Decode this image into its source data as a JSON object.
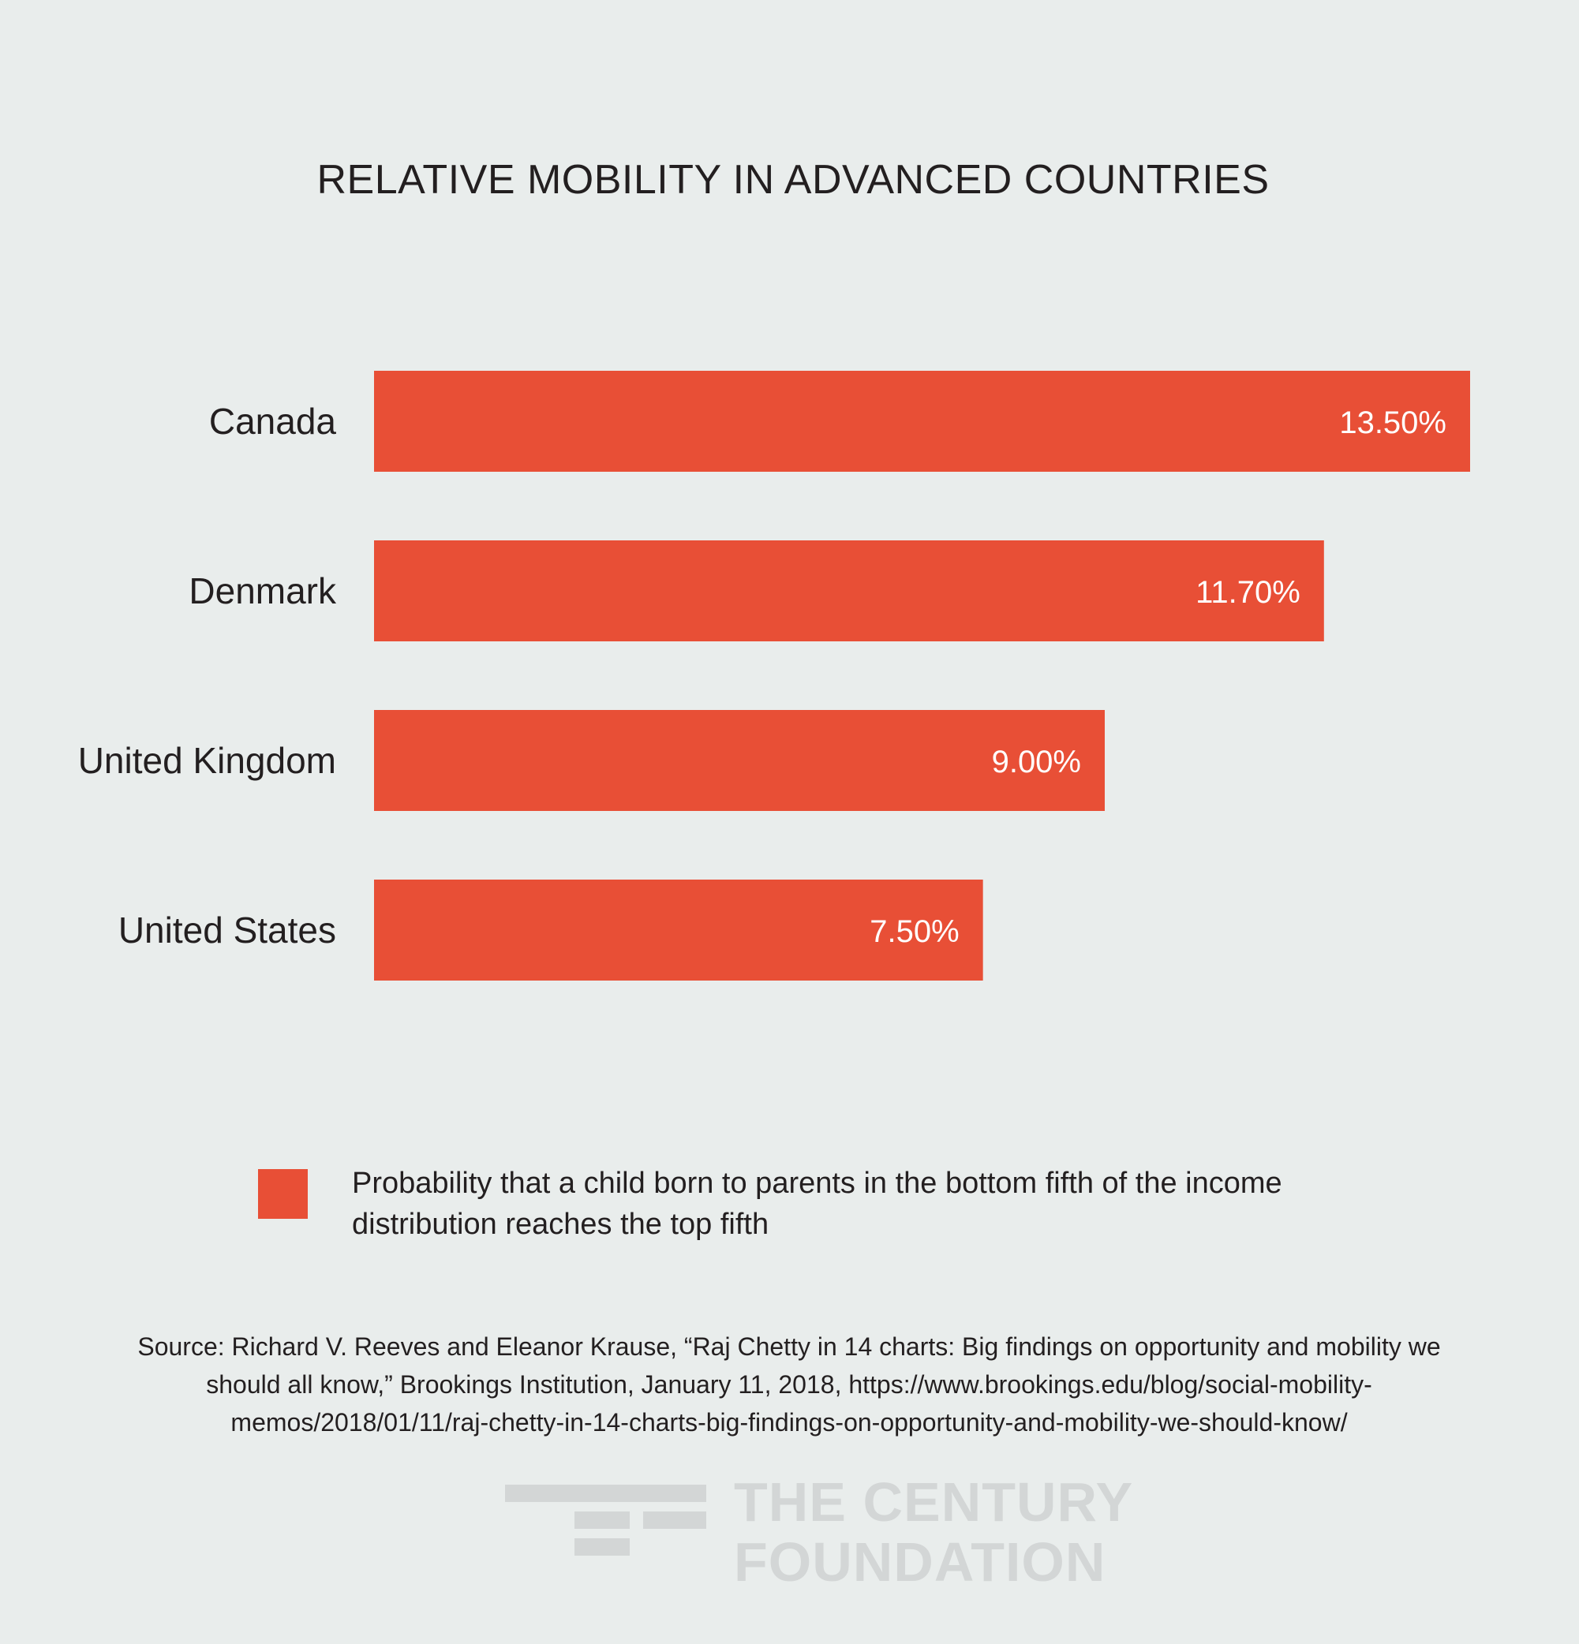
{
  "chart_data": {
    "type": "bar",
    "orientation": "horizontal",
    "title": "RELATIVE MOBILITY IN ADVANCED COUNTRIES",
    "categories": [
      "Canada",
      "Denmark",
      "United Kingdom",
      "United States"
    ],
    "series": [
      {
        "name": "Probability that a child born to parents in the bottom fifth of the income distribution reaches the top fifth",
        "values": [
          13.5,
          11.7,
          9.0,
          7.5
        ],
        "data_labels": [
          "13.50%",
          "11.70%",
          "9.00%",
          "7.50%"
        ]
      }
    ],
    "xlim": [
      0,
      13.5
    ],
    "grid": false,
    "legend_position": "bottom",
    "colors": {
      "bar": "#e84f36",
      "label_on_bar": "#ffffff"
    }
  },
  "legend": {
    "label": "Probability that a child born to parents in the bottom fifth of the income distribution reaches the top fifth"
  },
  "source": "Source: Richard V. Reeves and Eleanor Krause, “Raj Chetty in 14 charts: Big findings on opportunity and mobility we should all know,” Brookings Institution, January 11, 2018, https://www.brookings.edu/blog/social-mobility-memos/2018/01/11/raj-chetty-in-14-charts-big-findings-on-opportunity-and-mobility-we-should-know/",
  "logo": {
    "line1": "THE CENTURY",
    "line2": "FOUNDATION"
  }
}
